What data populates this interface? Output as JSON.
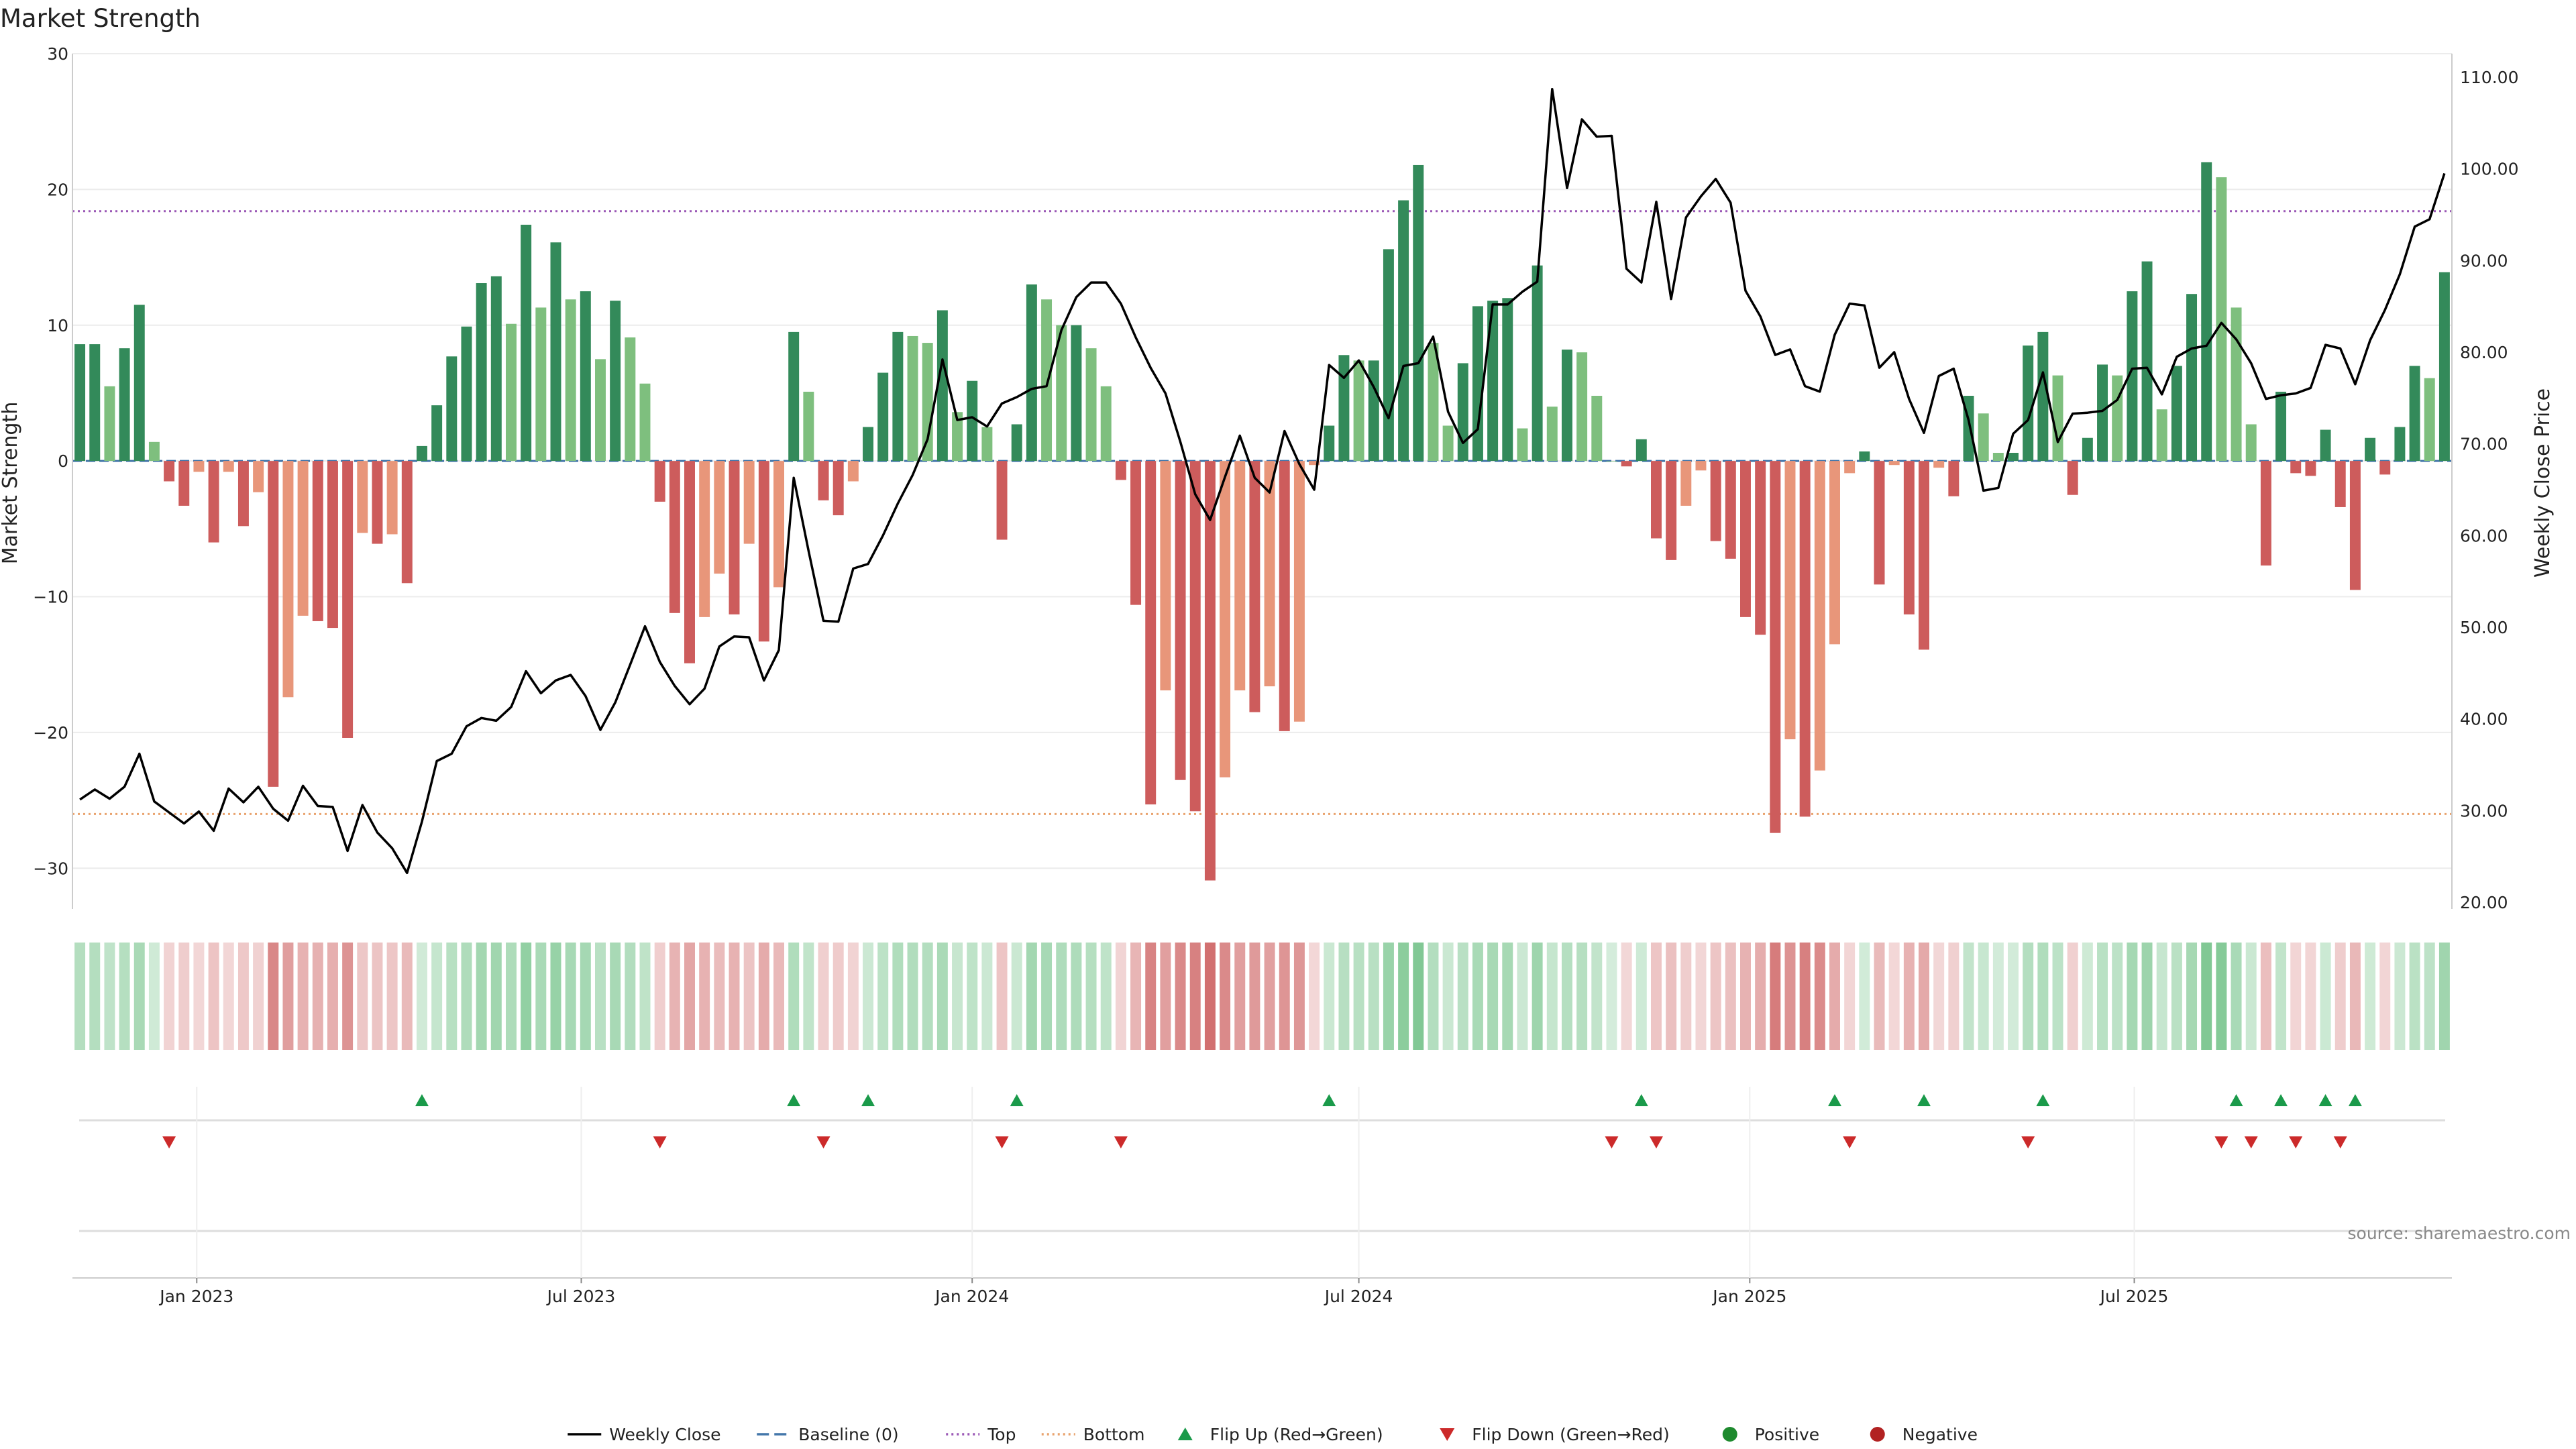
{
  "chart_data": {
    "type": "bar",
    "title": "Market Strength",
    "ylabel_left": "Market Strength",
    "ylabel_right": "Weekly Close Price",
    "ylim_left": [
      -33,
      30
    ],
    "ylim_right": [
      20,
      110
    ],
    "yticks_left": [
      30,
      20,
      10,
      0,
      -10,
      -20,
      -30
    ],
    "yticks_right": [
      "110.00",
      "100.00",
      "90.00",
      "80.00",
      "70.00",
      "60.00",
      "50.00",
      "40.00",
      "30.00",
      "20.00"
    ],
    "top_level": 18.4,
    "bottom_level": -26,
    "x_start": "2022-11-07",
    "x_step_days": 7,
    "x_ticks": [
      {
        "label": "Jan 2023",
        "date": "2023-01-01"
      },
      {
        "label": "Jul 2023",
        "date": "2023-07-01"
      },
      {
        "label": "Jan 2024",
        "date": "2024-01-01"
      },
      {
        "label": "Jul 2024",
        "date": "2024-07-01"
      },
      {
        "label": "Jan 2025",
        "date": "2025-01-01"
      },
      {
        "label": "Jul 2025",
        "date": "2025-07-01"
      }
    ],
    "strength": [
      8.6,
      8.6,
      5.5,
      8.3,
      11.5,
      1.4,
      -1.5,
      -3.3,
      -0.8,
      -6.0,
      -0.8,
      -4.8,
      -2.3,
      -24.0,
      -17.4,
      -11.4,
      -11.8,
      -12.3,
      -20.4,
      -5.3,
      -6.1,
      -5.4,
      -9.0,
      1.1,
      4.1,
      7.7,
      9.9,
      13.1,
      13.6,
      10.1,
      17.4,
      11.3,
      16.1,
      11.9,
      12.5,
      7.5,
      11.8,
      9.1,
      5.7,
      -3.0,
      -11.2,
      -14.9,
      -11.5,
      -8.3,
      -11.3,
      -6.1,
      -13.3,
      -9.3,
      9.5,
      5.1,
      -2.9,
      -4.0,
      -1.5,
      2.5,
      6.5,
      9.5,
      9.2,
      8.7,
      11.1,
      3.6,
      5.9,
      2.5,
      -5.8,
      2.7,
      13.0,
      11.9,
      10.0,
      10.0,
      8.3,
      5.5,
      -1.4,
      -10.6,
      -25.3,
      -16.9,
      -23.5,
      -25.8,
      -30.9,
      -23.3,
      -16.9,
      -18.5,
      -16.6,
      -19.9,
      -19.2,
      -0.3,
      2.6,
      7.8,
      7.4,
      7.4,
      15.6,
      19.2,
      21.8,
      8.7,
      2.6,
      7.2,
      11.4,
      11.8,
      12.0,
      2.4,
      14.4,
      4.0,
      8.2,
      8.0,
      4.8,
      0.0,
      -0.4,
      1.6,
      -5.7,
      -7.3,
      -3.3,
      -0.7,
      -5.9,
      -7.2,
      -11.5,
      -12.8,
      -27.4,
      -20.5,
      -26.2,
      -22.8,
      -13.5,
      -0.9,
      0.7,
      -9.1,
      -0.3,
      -11.3,
      -13.9,
      -0.5,
      -2.6,
      4.8,
      3.5,
      0.6,
      0.6,
      8.5,
      9.5,
      6.3,
      -2.5,
      1.7,
      7.1,
      6.3,
      12.5,
      14.7,
      3.8,
      7.0,
      12.3,
      22.0,
      20.9,
      11.3,
      2.7,
      -7.7,
      5.1,
      -0.9,
      -1.1,
      2.3,
      -3.4,
      -9.5,
      1.7,
      -1.0,
      2.5,
      7.0,
      6.1,
      13.9
    ],
    "price": [
      31.2,
      32.3,
      31.3,
      32.6,
      36.2,
      31.0,
      29.8,
      28.6,
      29.9,
      27.8,
      32.4,
      30.9,
      32.6,
      30.2,
      28.9,
      32.7,
      30.5,
      30.4,
      25.6,
      30.6,
      27.6,
      25.9,
      23.2,
      28.8,
      35.4,
      36.2,
      39.2,
      40.1,
      39.8,
      41.3,
      45.2,
      42.8,
      44.2,
      44.8,
      42.5,
      38.8,
      41.8,
      45.9,
      50.1,
      46.2,
      43.6,
      41.6,
      43.3,
      47.9,
      49.0,
      48.9,
      44.2,
      47.5,
      66.3,
      58.3,
      50.7,
      50.6,
      56.4,
      56.9,
      60.0,
      63.5,
      66.6,
      70.5,
      79.2,
      72.6,
      72.9,
      71.9,
      74.4,
      75.1,
      76.0,
      76.3,
      82.4,
      86.0,
      87.6,
      87.6,
      85.3,
      81.6,
      78.3,
      75.5,
      70.2,
      64.5,
      61.7,
      66.4,
      70.9,
      66.3,
      64.7,
      71.4,
      67.8,
      65.0,
      78.6,
      77.2,
      79.1,
      76.2,
      72.8,
      78.5,
      78.8,
      81.7,
      73.5,
      70.1,
      71.6,
      85.2,
      85.2,
      86.6,
      87.7,
      108.7,
      97.9,
      105.4,
      103.5,
      103.6,
      89.1,
      87.6,
      96.4,
      85.8,
      94.7,
      97.0,
      98.9,
      96.3,
      86.7,
      83.9,
      79.7,
      80.3,
      76.3,
      75.7,
      81.9,
      85.3,
      85.1,
      78.3,
      80.0,
      74.9,
      71.2,
      77.4,
      78.2,
      72.6,
      64.9,
      65.2,
      71.1,
      72.6,
      77.8,
      70.2,
      73.3,
      73.4,
      73.6,
      74.8,
      78.2,
      78.3,
      75.4,
      79.5,
      80.4,
      80.7,
      83.2,
      81.4,
      78.8,
      74.9,
      75.3,
      75.5,
      76.1,
      80.8,
      80.4,
      76.5,
      81.3,
      84.6,
      88.5,
      93.7,
      94.5,
      99.5
    ],
    "flip_up_index": [
      23,
      48,
      53,
      63,
      84,
      105,
      118,
      124,
      132,
      145,
      148,
      151,
      153
    ],
    "flip_down_index": [
      6,
      39,
      50,
      62,
      70,
      103,
      106,
      119,
      131,
      144,
      146,
      149,
      152
    ],
    "legend": [
      {
        "label": "Weekly Close",
        "icon": "line-solid",
        "color": "#000000"
      },
      {
        "label": "Baseline (0)",
        "icon": "line-dashed",
        "color": "#4477aa"
      },
      {
        "label": "Top",
        "icon": "line-dotted",
        "color": "#9b59b6"
      },
      {
        "label": "Bottom",
        "icon": "line-dotted",
        "color": "#e9a36e"
      },
      {
        "label": "Flip Up (Red→Green)",
        "icon": "triangle-up",
        "color": "#1a9a4a"
      },
      {
        "label": "Flip Down (Green→Red)",
        "icon": "triangle-down",
        "color": "#cc2a2a"
      },
      {
        "label": "Positive",
        "icon": "dot",
        "color": "#1e8a2e"
      },
      {
        "label": "Negative",
        "icon": "dot",
        "color": "#b22222"
      }
    ],
    "source": "source: sharemaestro.com",
    "colors": {
      "pos_strong": "#338a5a",
      "pos_weak": "#7ebf7e",
      "neg_strong": "#cd5c5c",
      "neg_weak": "#e8967a",
      "price": "#000000",
      "top": "#9b59b6",
      "bottom": "#e9a36e",
      "baseline": "#4477aa",
      "flip_up": "#1a9a4a",
      "flip_down": "#cc2a2a"
    }
  }
}
